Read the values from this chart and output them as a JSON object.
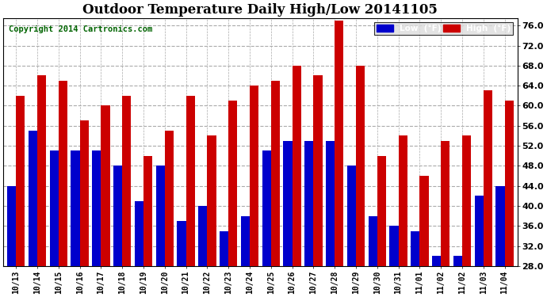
{
  "title": "Outdoor Temperature Daily High/Low 20141105",
  "copyright": "Copyright 2014 Cartronics.com",
  "dates": [
    "10/13",
    "10/14",
    "10/15",
    "10/16",
    "10/17",
    "10/18",
    "10/19",
    "10/20",
    "10/21",
    "10/22",
    "10/23",
    "10/24",
    "10/25",
    "10/26",
    "10/27",
    "10/28",
    "10/29",
    "10/30",
    "10/31",
    "11/01",
    "11/02",
    "11/02",
    "11/03",
    "11/04"
  ],
  "lows": [
    44,
    55,
    51,
    51,
    51,
    48,
    41,
    48,
    37,
    40,
    35,
    38,
    51,
    53,
    53,
    53,
    48,
    38,
    36,
    35,
    30,
    30,
    42,
    44
  ],
  "highs": [
    62,
    66,
    65,
    57,
    60,
    62,
    50,
    55,
    62,
    54,
    61,
    64,
    65,
    68,
    66,
    77,
    68,
    50,
    54,
    46,
    53,
    54,
    63,
    61
  ],
  "low_color": "#0000cc",
  "high_color": "#cc0000",
  "background_color": "#ffffff",
  "plot_bg_color": "#ffffff",
  "grid_color": "#aaaaaa",
  "ylim": [
    28,
    77
  ],
  "yticks": [
    28.0,
    32.0,
    36.0,
    40.0,
    44.0,
    48.0,
    52.0,
    56.0,
    60.0,
    64.0,
    68.0,
    72.0,
    76.0
  ],
  "title_fontsize": 12,
  "copyright_fontsize": 7.5,
  "legend_low_label": "Low  (°F)",
  "legend_high_label": "High  (°F)"
}
